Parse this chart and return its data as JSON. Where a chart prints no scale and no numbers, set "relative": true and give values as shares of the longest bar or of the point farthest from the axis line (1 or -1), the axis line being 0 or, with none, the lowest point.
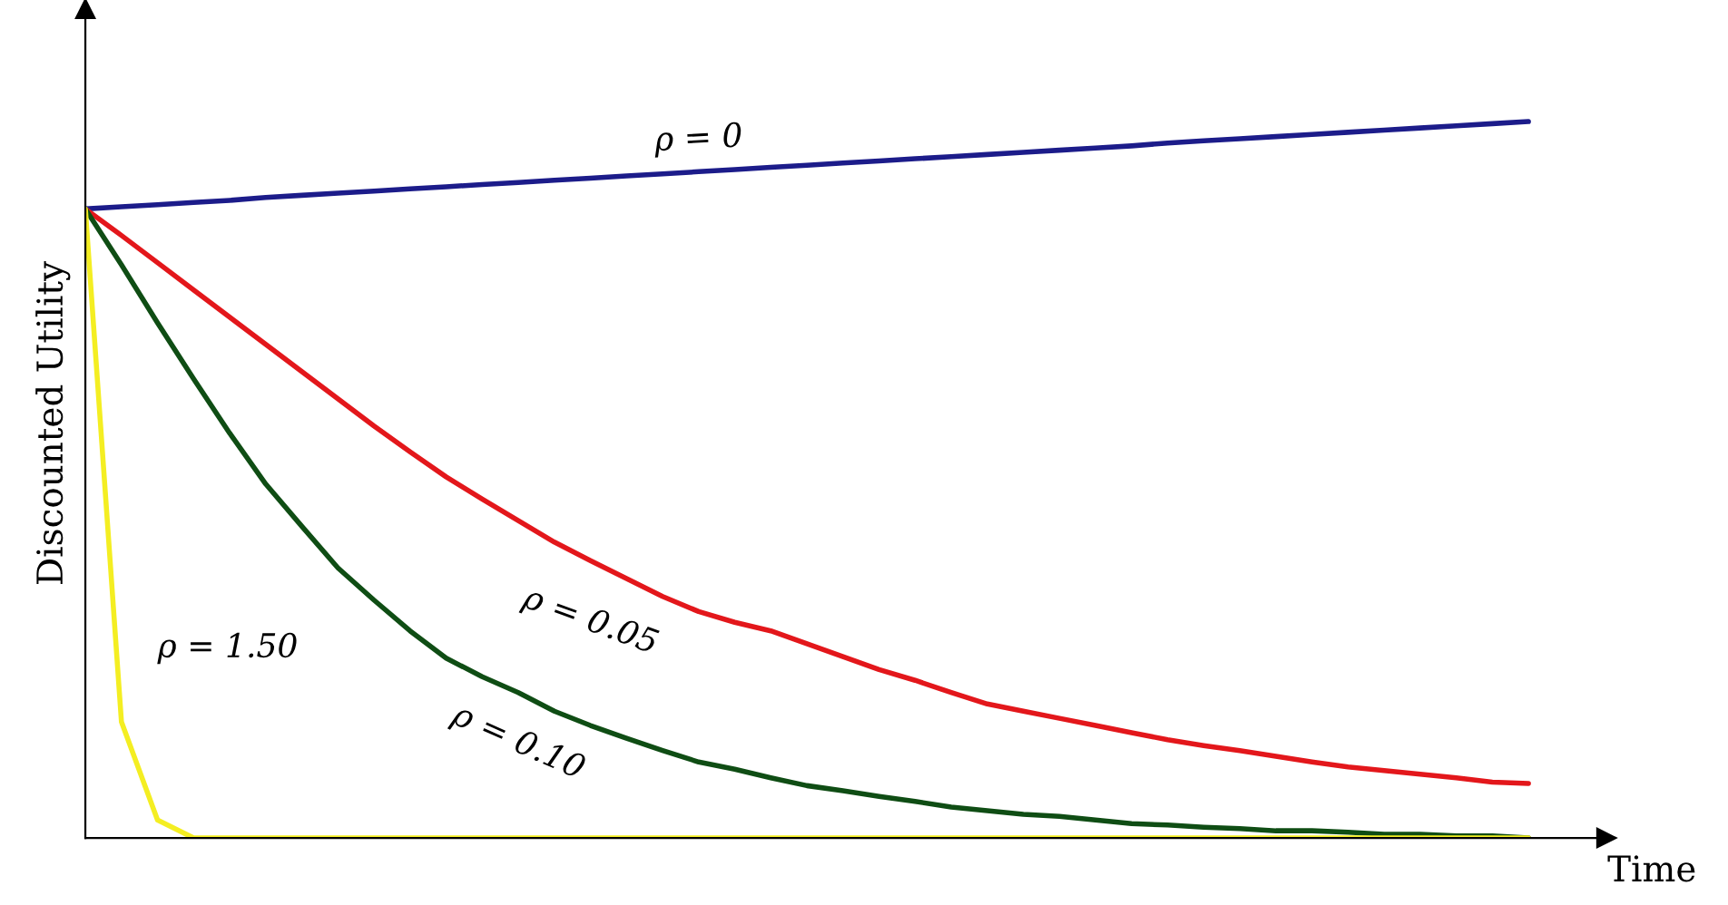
{
  "chart_data": {
    "type": "line",
    "relative": true,
    "xlabel": "Time",
    "ylabel": "Discounted Utility",
    "grid": false,
    "legend": false,
    "marker": "none",
    "line_style": "solid",
    "categories": [
      null,
      null,
      null,
      null,
      null,
      null,
      null,
      null,
      null,
      null,
      null,
      null,
      null,
      null,
      null,
      null,
      null,
      null,
      null,
      null,
      null,
      null,
      null,
      null,
      null,
      null,
      null,
      null,
      null,
      null,
      null,
      null,
      null,
      null,
      null,
      null,
      null,
      null,
      null,
      null,
      null
    ],
    "series": [
      {
        "name": "ρ = 0",
        "color": "#1c1c8a",
        "values": [
          0.878,
          0.881,
          0.884,
          0.887,
          0.89,
          0.894,
          0.897,
          0.9,
          0.903,
          0.906,
          0.909,
          0.912,
          0.915,
          0.918,
          0.921,
          0.924,
          0.927,
          0.93,
          0.933,
          0.936,
          0.939,
          0.942,
          0.945,
          0.948,
          0.951,
          0.954,
          0.957,
          0.96,
          0.963,
          0.966,
          0.97,
          0.973,
          0.976,
          0.979,
          0.982,
          0.985,
          0.988,
          0.991,
          0.994,
          0.997,
          1.0
        ]
      },
      {
        "name": "ρ = 0.05",
        "color": "#e3171b",
        "values": [
          0.878,
          0.841,
          0.803,
          0.765,
          0.727,
          0.689,
          0.651,
          0.613,
          0.575,
          0.539,
          0.504,
          0.473,
          0.443,
          0.413,
          0.387,
          0.362,
          0.337,
          0.316,
          0.301,
          0.289,
          0.271,
          0.253,
          0.235,
          0.22,
          0.203,
          0.187,
          0.177,
          0.167,
          0.157,
          0.147,
          0.137,
          0.129,
          0.122,
          0.114,
          0.106,
          0.099,
          0.094,
          0.089,
          0.084,
          0.078,
          0.076
        ]
      },
      {
        "name": "ρ = 0.10",
        "color": "#0f4d14",
        "values": [
          0.878,
          0.8,
          0.719,
          0.641,
          0.565,
          0.494,
          0.435,
          0.377,
          0.332,
          0.289,
          0.251,
          0.225,
          0.203,
          0.177,
          0.157,
          0.139,
          0.122,
          0.106,
          0.096,
          0.084,
          0.073,
          0.066,
          0.058,
          0.051,
          0.043,
          0.038,
          0.033,
          0.03,
          0.025,
          0.02,
          0.018,
          0.015,
          0.013,
          0.01,
          0.01,
          0.008,
          0.005,
          0.005,
          0.003,
          0.003,
          0.0
        ]
      },
      {
        "name": "ρ = 1.50",
        "color": "#f4ee22",
        "values": [
          0.878,
          0.162,
          0.025,
          0.0,
          0.0,
          0.0,
          0.0,
          0.0,
          0.0,
          0.0,
          0.0,
          0.0,
          0.0,
          0.0,
          0.0,
          0.0,
          0.0,
          0.0,
          0.0,
          0.0,
          0.0,
          0.0,
          0.0,
          0.0,
          0.0,
          0.0,
          0.0,
          0.0,
          0.0,
          0.0,
          0.0,
          0.0,
          0.0,
          0.0,
          0.0,
          0.0,
          0.0,
          0.0,
          0.0,
          0.0,
          0.0
        ]
      }
    ]
  }
}
